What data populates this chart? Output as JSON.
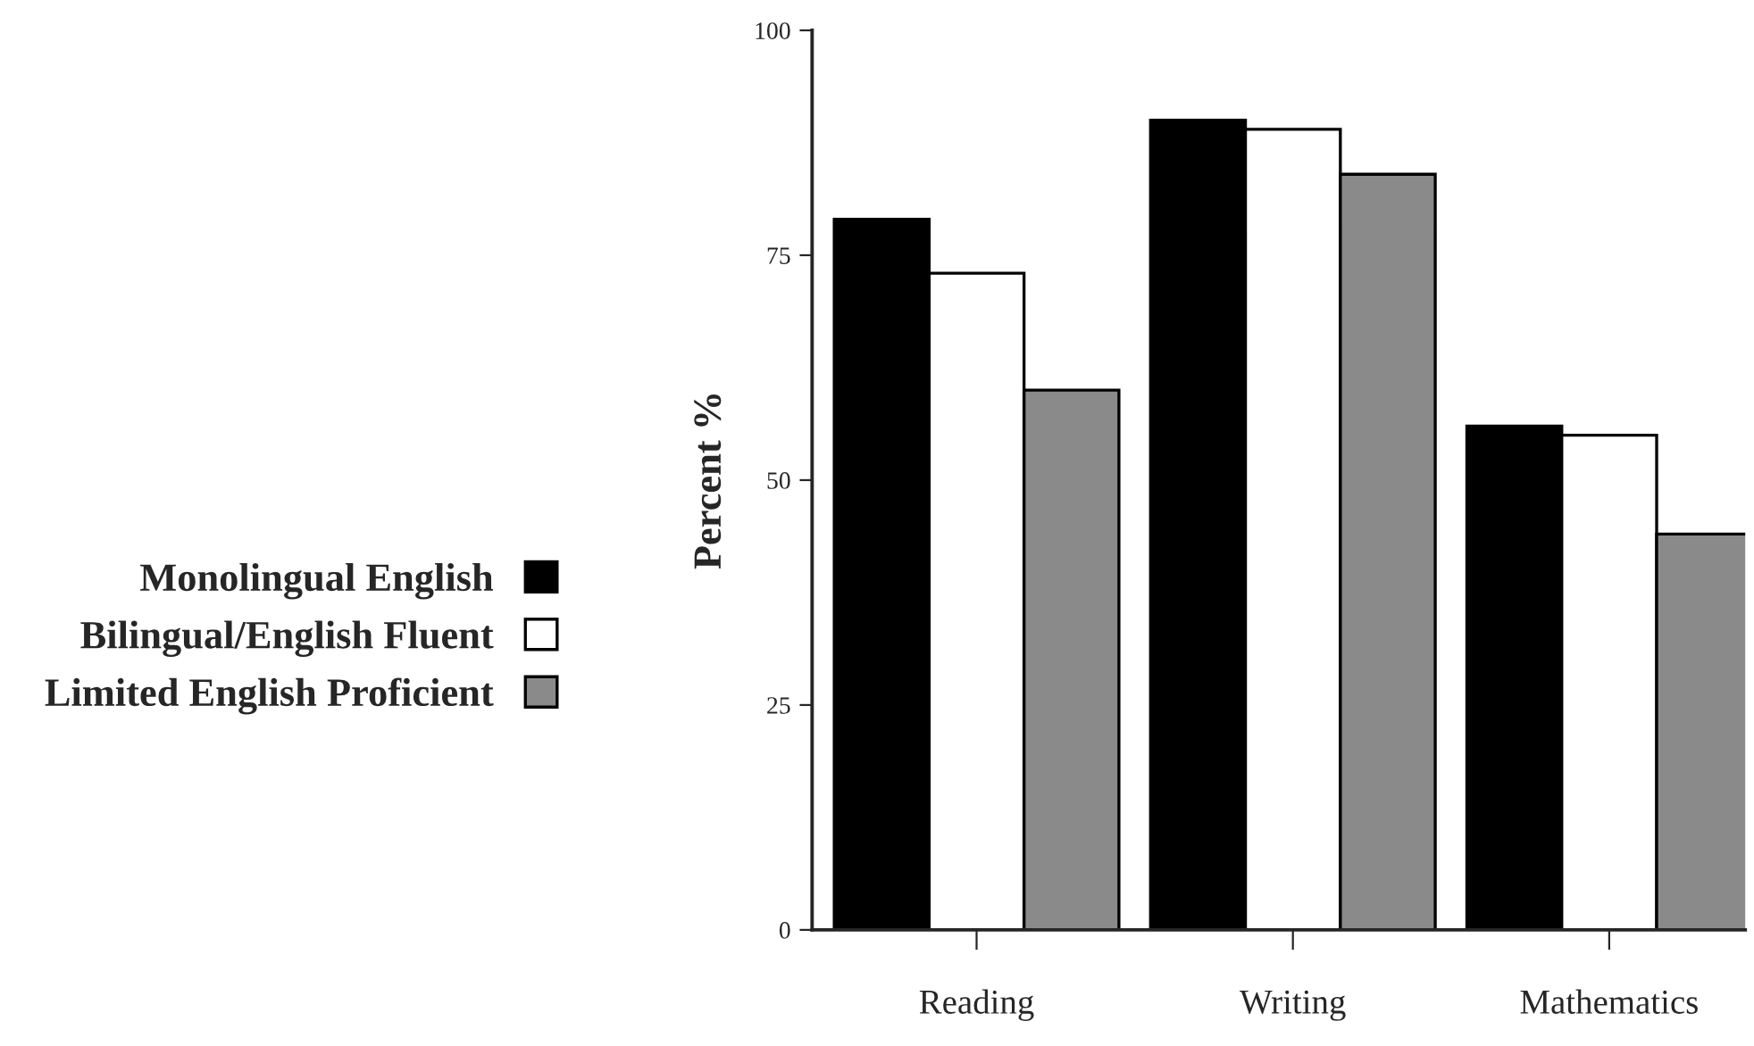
{
  "chart_data": {
    "type": "bar",
    "ylabel": "Percent %",
    "categories": [
      "Reading",
      "Writing",
      "Mathematics"
    ],
    "series": [
      {
        "name": "Monolingual English",
        "color": "#000000",
        "values": [
          79,
          90,
          56
        ]
      },
      {
        "name": "Bilingual/English Fluent",
        "color": "#ffffff",
        "values": [
          73,
          89,
          55
        ]
      },
      {
        "name": "Limited English Proficient",
        "color": "#8a8a8a",
        "values": [
          60,
          84,
          44
        ]
      }
    ],
    "ylim": [
      0,
      100
    ],
    "yticks": [
      0,
      25,
      50,
      75,
      100
    ],
    "grid": false,
    "legend": "left"
  }
}
